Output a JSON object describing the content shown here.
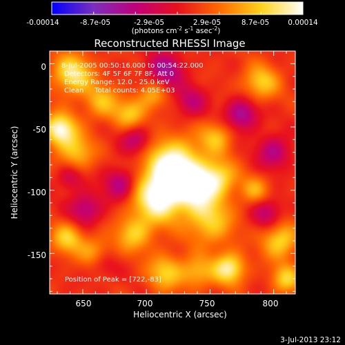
{
  "colorbar": {
    "ticks": [
      "-0.00014",
      "-8.7e-05",
      "-2.9e-05",
      "2.9e-05",
      "8.7e-05",
      "0.00014"
    ],
    "unit_label": "(photons cm",
    "unit_exp1": "-2",
    "unit_mid": " s",
    "unit_exp2": "-1",
    "unit_tail": " asec",
    "unit_exp3": "-2",
    "unit_close": ")",
    "stops": [
      "#0000ff",
      "#7b2fbd",
      "#c0007a",
      "#e8101e",
      "#ff6a00",
      "#ffd21a",
      "#ffffff"
    ]
  },
  "plot": {
    "title": "Reconstructed RHESSI Image",
    "xlabel": "Heliocentric X (arcsec)",
    "ylabel": "Heliocentric Y (arcsec)",
    "xticks": [
      "650",
      "700",
      "750",
      "800"
    ],
    "yticks": [
      "0",
      "-50",
      "-100",
      "-150"
    ],
    "info_lines": [
      "8-Jul-2005 00:50:16.000 to 00:54:22.000",
      "Detectors: 4F 5F 6F 7F 8F, Att 0",
      "Energy Range: 12.0 - 25.0 keV",
      "Clean     Total counts: 4.05E+03"
    ],
    "peak_text": "Position of Peak = [722,-83]"
  },
  "footer": {
    "timestamp": "3-Jul-2013 23:12"
  },
  "image_data": {
    "xlim": [
      624,
      817
    ],
    "ylim": [
      -182,
      10
    ],
    "sources": [
      {
        "x": 722,
        "y": -83,
        "amp": 1.0,
        "s": 16
      },
      {
        "x": 708,
        "y": -108,
        "amp": 0.75,
        "s": 14
      },
      {
        "x": 740,
        "y": -100,
        "amp": 0.6,
        "s": 12
      },
      {
        "x": 757,
        "y": -90,
        "amp": 0.55,
        "s": 10
      },
      {
        "x": 750,
        "y": -125,
        "amp": 0.55,
        "s": 13
      },
      {
        "x": 632,
        "y": -52,
        "amp": 0.85,
        "s": 9
      },
      {
        "x": 645,
        "y": -70,
        "amp": 0.5,
        "s": 10
      },
      {
        "x": 642,
        "y": -8,
        "amp": 0.7,
        "s": 11
      },
      {
        "x": 665,
        "y": -30,
        "amp": 0.45,
        "s": 10
      },
      {
        "x": 688,
        "y": -40,
        "amp": 0.5,
        "s": 9
      },
      {
        "x": 705,
        "y": -25,
        "amp": 0.4,
        "s": 8
      },
      {
        "x": 790,
        "y": -15,
        "amp": 0.55,
        "s": 10
      },
      {
        "x": 755,
        "y": -58,
        "amp": 0.45,
        "s": 9
      },
      {
        "x": 638,
        "y": -138,
        "amp": 0.55,
        "s": 9
      },
      {
        "x": 660,
        "y": -150,
        "amp": 0.45,
        "s": 9
      },
      {
        "x": 690,
        "y": -135,
        "amp": 0.5,
        "s": 10
      },
      {
        "x": 715,
        "y": -165,
        "amp": 0.55,
        "s": 10
      },
      {
        "x": 740,
        "y": -165,
        "amp": 0.45,
        "s": 9
      },
      {
        "x": 765,
        "y": -162,
        "amp": 0.75,
        "s": 9
      },
      {
        "x": 805,
        "y": -140,
        "amp": 0.6,
        "s": 10
      },
      {
        "x": 810,
        "y": -170,
        "amp": 0.55,
        "s": 8
      },
      {
        "x": 785,
        "y": -100,
        "amp": 0.4,
        "s": 8
      },
      {
        "x": 680,
        "y": -95,
        "amp": -0.55,
        "s": 9
      },
      {
        "x": 692,
        "y": -60,
        "amp": -0.5,
        "s": 8
      },
      {
        "x": 715,
        "y": -5,
        "amp": -0.55,
        "s": 10
      },
      {
        "x": 735,
        "y": -30,
        "amp": -0.4,
        "s": 9
      },
      {
        "x": 775,
        "y": -40,
        "amp": -0.6,
        "s": 9
      },
      {
        "x": 800,
        "y": -70,
        "amp": -0.5,
        "s": 9
      },
      {
        "x": 652,
        "y": -115,
        "amp": -0.5,
        "s": 9
      },
      {
        "x": 665,
        "y": -158,
        "amp": -0.3,
        "s": 8
      },
      {
        "x": 795,
        "y": -118,
        "amp": -0.45,
        "s": 8
      },
      {
        "x": 640,
        "y": -90,
        "amp": -0.35,
        "s": 7
      }
    ]
  }
}
